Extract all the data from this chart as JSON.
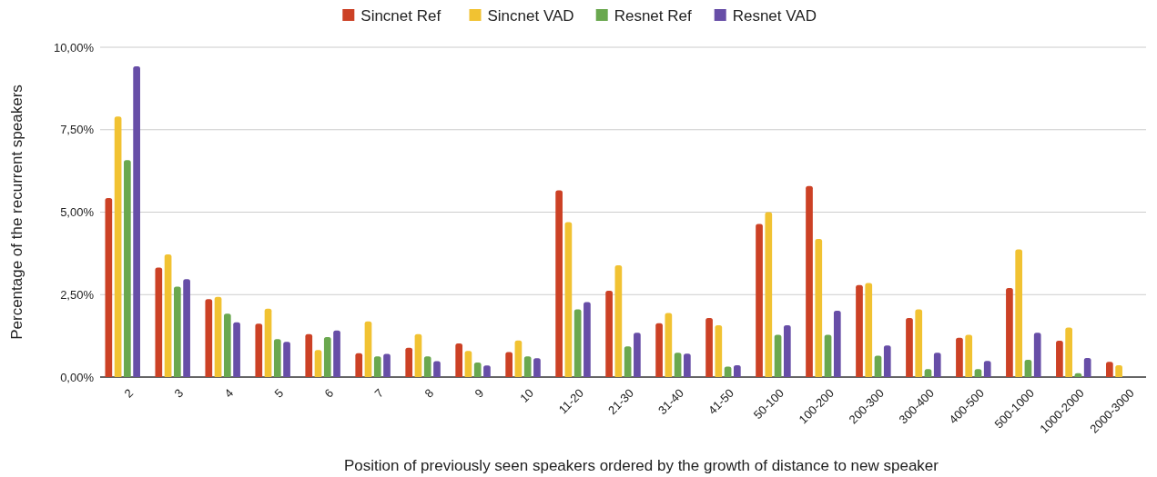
{
  "chart_data": {
    "type": "bar",
    "xlabel": "Position of previously seen speakers ordered by the growth of distance to new speaker",
    "ylabel": "Percentage of the recurrent speakers",
    "categories": [
      "2",
      "3",
      "4",
      "5",
      "6",
      "7",
      "8",
      "9",
      "10",
      "11-20",
      "21-30",
      "31-40",
      "41-50",
      "50-100",
      "100-200",
      "200-300",
      "300-400",
      "400-500",
      "500-1000",
      "1000-2000",
      "2000-3000"
    ],
    "series": [
      {
        "name": "Sincnet Ref",
        "color": "#cc4125",
        "values": [
          5.43,
          3.32,
          2.36,
          1.62,
          1.3,
          0.72,
          0.89,
          1.02,
          0.76,
          5.66,
          2.62,
          1.63,
          1.79,
          4.64,
          5.79,
          2.79,
          1.79,
          1.19,
          2.7,
          1.1,
          0.46
        ]
      },
      {
        "name": "Sincnet VAD",
        "color": "#f1c232",
        "values": [
          7.9,
          3.72,
          2.43,
          2.07,
          0.82,
          1.69,
          1.3,
          0.79,
          1.11,
          4.7,
          3.39,
          1.94,
          1.57,
          5.0,
          4.19,
          2.85,
          2.05,
          1.28,
          3.87,
          1.5,
          0.36
        ]
      },
      {
        "name": "Resnet Ref",
        "color": "#6aa84f",
        "values": [
          6.58,
          2.74,
          1.92,
          1.15,
          1.21,
          0.63,
          0.63,
          0.44,
          0.63,
          2.05,
          0.93,
          0.74,
          0.32,
          1.28,
          1.28,
          0.65,
          0.24,
          0.24,
          0.52,
          0.12,
          null
        ]
      },
      {
        "name": "Resnet VAD",
        "color": "#674ea7",
        "values": [
          9.42,
          2.97,
          1.66,
          1.07,
          1.41,
          0.7,
          0.48,
          0.35,
          0.57,
          2.27,
          1.34,
          0.71,
          0.36,
          1.57,
          2.01,
          0.96,
          0.74,
          0.49,
          1.34,
          0.58,
          null
        ]
      }
    ],
    "ylim": [
      0,
      10
    ],
    "yticks": [
      {
        "value": 0,
        "label": "0,00%"
      },
      {
        "value": 2.5,
        "label": "2,50%"
      },
      {
        "value": 5,
        "label": "5,00%"
      },
      {
        "value": 7.5,
        "label": "7,50%"
      },
      {
        "value": 10,
        "label": "10,00%"
      }
    ],
    "grid": "y",
    "legend": "top"
  }
}
